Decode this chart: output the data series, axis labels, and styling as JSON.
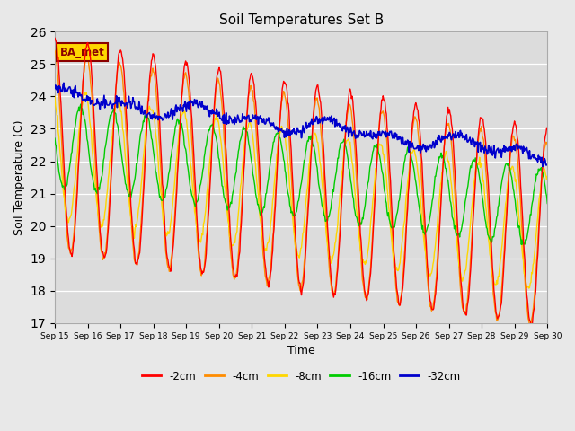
{
  "title": "Soil Temperatures Set B",
  "xlabel": "Time",
  "ylabel": "Soil Temperature (C)",
  "ylim": [
    17.0,
    26.0
  ],
  "yticks": [
    17.0,
    18.0,
    19.0,
    20.0,
    21.0,
    22.0,
    23.0,
    24.0,
    25.0,
    26.0
  ],
  "start_day": 15,
  "end_day": 30,
  "n_points": 720,
  "series": {
    "-2cm": {
      "color": "#FF0000",
      "lw": 1.0
    },
    "-4cm": {
      "color": "#FF8C00",
      "lw": 1.0
    },
    "-8cm": {
      "color": "#FFD700",
      "lw": 1.0
    },
    "-16cm": {
      "color": "#00CC00",
      "lw": 1.0
    },
    "-32cm": {
      "color": "#0000CC",
      "lw": 1.2
    }
  },
  "annotation_text": "BA_met",
  "plot_bg_color": "#DCDCDC",
  "legend_colors": [
    "#FF0000",
    "#FF8C00",
    "#FFD700",
    "#00CC00",
    "#0000CC"
  ],
  "legend_labels": [
    "-2cm",
    "-4cm",
    "-8cm",
    "-16cm",
    "-32cm"
  ]
}
